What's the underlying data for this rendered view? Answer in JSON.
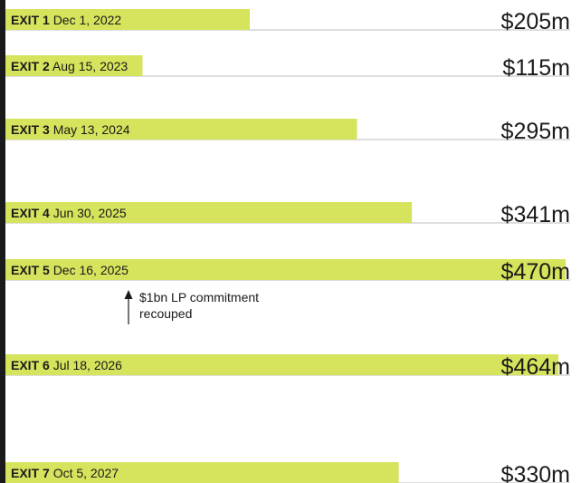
{
  "chart_data": {
    "type": "bar",
    "categories": [
      "EXIT 1",
      "EXIT 2",
      "EXIT 3",
      "EXIT 4",
      "EXIT 5",
      "EXIT 6",
      "EXIT 7"
    ],
    "dates": [
      "Dec 1, 2022",
      "Aug 15, 2023",
      "May 13, 2024",
      "Jun 30, 2025",
      "Dec 16, 2025",
      "Jul 18, 2026",
      "Oct 5, 2027"
    ],
    "values": [
      205,
      115,
      295,
      341,
      470,
      464,
      330
    ],
    "value_labels": [
      "$205m",
      "$115m",
      "$295m",
      "$341m",
      "$470m",
      "$464m",
      "$330m"
    ],
    "color": "#d6e35c",
    "annotation": {
      "lines": [
        "$1bn LP commitment",
        "recouped"
      ]
    }
  }
}
